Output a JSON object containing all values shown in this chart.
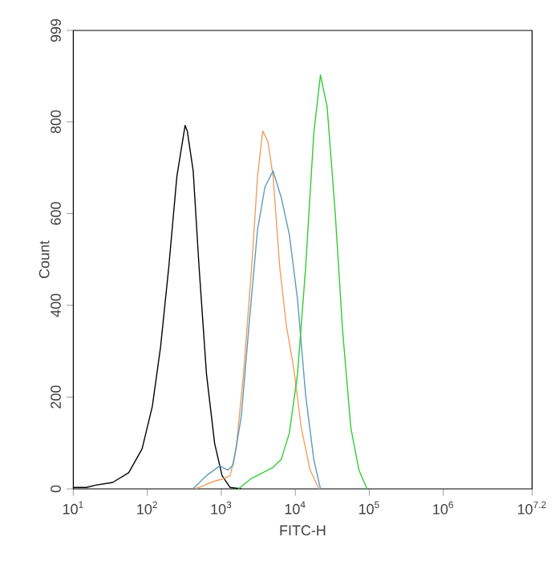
{
  "chart_data": {
    "type": "line",
    "xlabel": "FITC-H",
    "ylabel": "Count",
    "log": "x",
    "marker": "none",
    "line_style": "solid",
    "xlim": [
      10,
      15848932
    ],
    "ylim": [
      0,
      999
    ],
    "xticks": [
      {
        "value": 10,
        "label": "10$^{1}$"
      },
      {
        "value": 100,
        "label": "10$^{2}$"
      },
      {
        "value": 1000,
        "label": "10$^{3}$"
      },
      {
        "value": 10000,
        "label": "10$^{4}$"
      },
      {
        "value": 100000,
        "label": "10$^{5}$"
      },
      {
        "value": 1000000,
        "label": "10$^{6}$"
      },
      {
        "value": 15848932,
        "label": "10$^{7.2}$"
      }
    ],
    "yticks": [
      0,
      200,
      400,
      600,
      800,
      999
    ],
    "series": [
      {
        "color": "#000000",
        "x": [
          10,
          15,
          20,
          34,
          56,
          85,
          117,
          151,
          195,
          251,
          324,
          347,
          417,
          501,
          631,
          813,
          1023,
          1318,
          1862
        ],
        "values": [
          3,
          3,
          8,
          14,
          35,
          87,
          180,
          309,
          483,
          681,
          792,
          780,
          693,
          483,
          250,
          99,
          29,
          3,
          0
        ]
      },
      {
        "color": "#f0a060",
        "x": [
          447,
          813,
          1023,
          1318,
          1585,
          1995,
          2570,
          3090,
          3631,
          4266,
          5012,
          6166,
          7586,
          9550,
          12023,
          15849,
          20893
        ],
        "values": [
          0,
          17,
          21,
          29,
          87,
          250,
          483,
          681,
          780,
          757,
          681,
          483,
          355,
          262,
          134,
          41,
          0
        ]
      },
      {
        "color": "#5b9bbf",
        "x": [
          417,
          631,
          955,
          1230,
          1445,
          1862,
          2399,
          3090,
          3890,
          5012,
          6457,
          8318,
          10715,
          13804,
          17783,
          21878
        ],
        "values": [
          0,
          29,
          50,
          41,
          52,
          157,
          367,
          565,
          658,
          693,
          635,
          554,
          413,
          204,
          64,
          0
        ]
      },
      {
        "color": "#33cc33",
        "x": [
          1698,
          2570,
          3631,
          5012,
          6457,
          8318,
          10715,
          13804,
          17783,
          21878,
          26915,
          34674,
          43652,
          56234,
          72444,
          93325
        ],
        "values": [
          0,
          23,
          35,
          47,
          64,
          122,
          250,
          483,
          775,
          902,
          833,
          600,
          344,
          134,
          41,
          0
        ]
      }
    ]
  }
}
